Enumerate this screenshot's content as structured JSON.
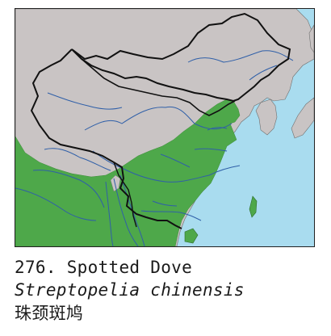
{
  "map": {
    "colors": {
      "sea": "#a9dcef",
      "land": "#c9c4c4",
      "range": "#4ea84a",
      "rivers": "#2f5fa8",
      "borders": "#111111"
    },
    "icons": [
      "range-map"
    ]
  },
  "caption": {
    "number": "276.",
    "english_name": "Spotted Dove",
    "latin_name": "Streptopelia chinensis",
    "chinese_name": "珠颈斑鸠"
  }
}
